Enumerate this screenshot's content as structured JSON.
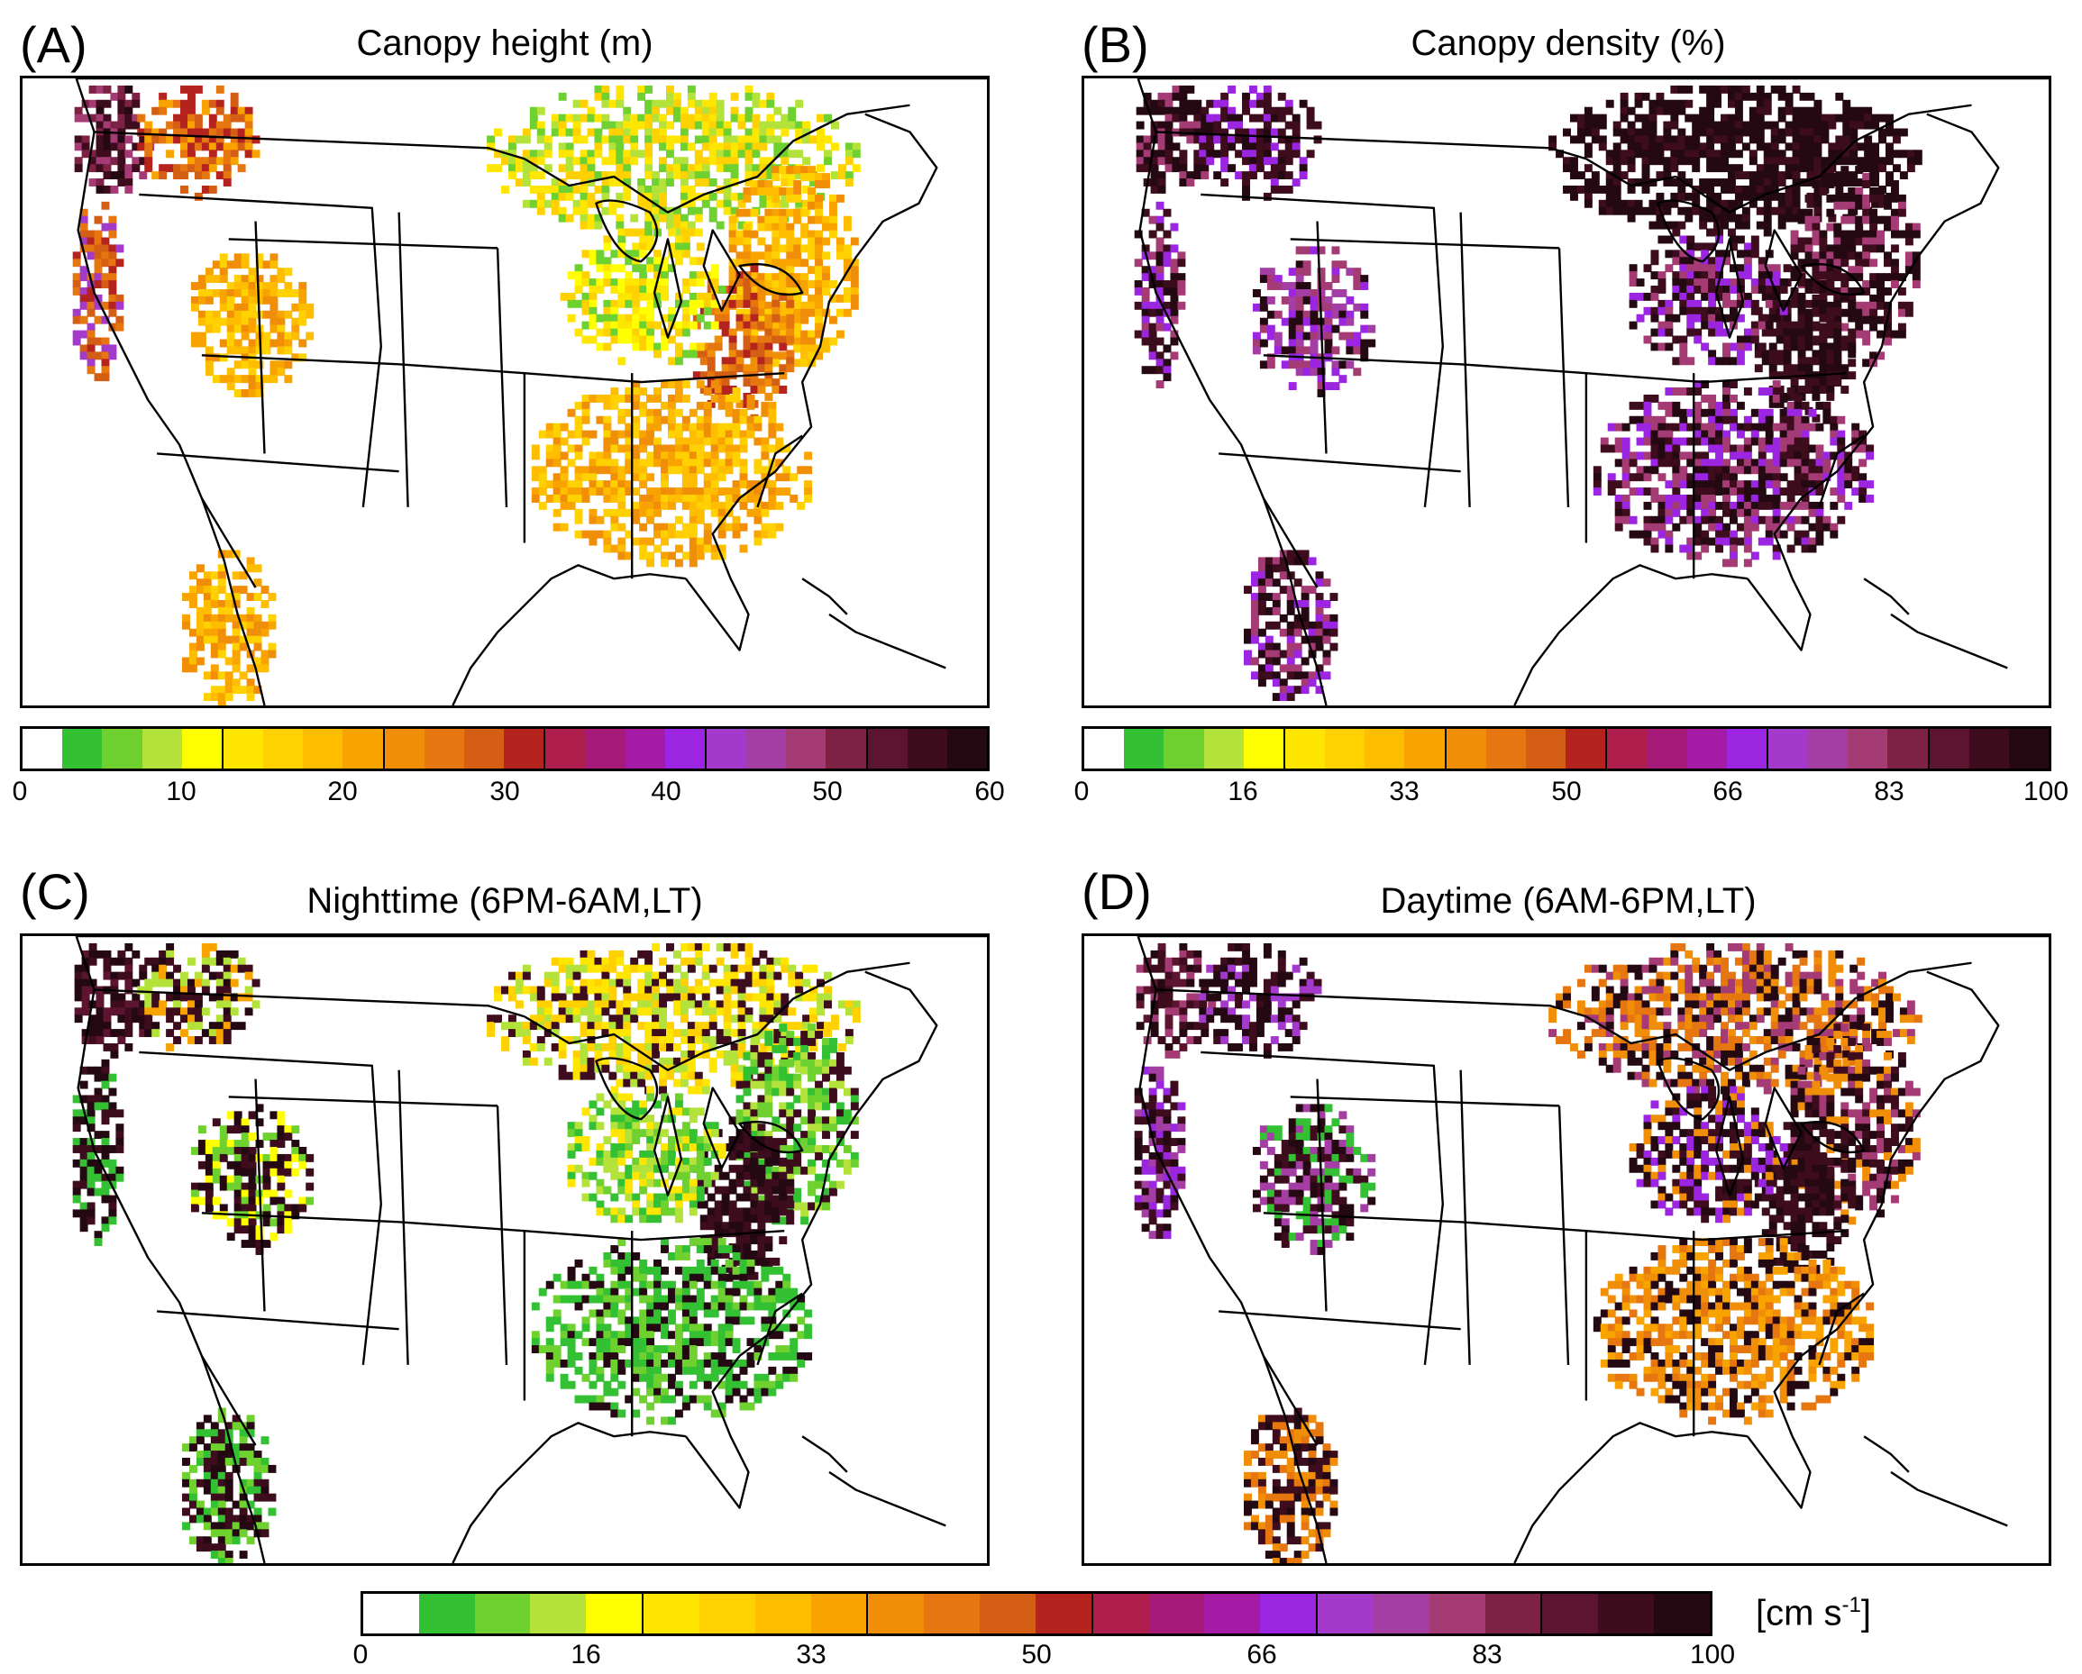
{
  "panels": [
    {
      "label": "(A)",
      "title": "Canopy height (m)",
      "palette": "height"
    },
    {
      "label": "(B)",
      "title": "Canopy density (%)",
      "palette": "density"
    },
    {
      "label": "(C)",
      "title": "Nighttime (6PM-6AM,LT)",
      "palette": "night"
    },
    {
      "label": "(D)",
      "title": "Daytime (6AM-6PM,LT)",
      "palette": "day"
    }
  ],
  "colorbars": {
    "height": {
      "ticks": [
        "0",
        "10",
        "20",
        "30",
        "40",
        "50",
        "60"
      ]
    },
    "density": {
      "ticks": [
        "0",
        "16",
        "33",
        "50",
        "66",
        "83",
        "100"
      ]
    },
    "velocity": {
      "ticks": [
        "0",
        "16",
        "33",
        "50",
        "66",
        "83",
        "100"
      ],
      "units_main": "[cm s",
      "units_sup": "-1",
      "units_end": "]"
    }
  },
  "palette_colors": [
    "#ffffff",
    "#33c133",
    "#6fd12f",
    "#b3e23b",
    "#ffff00",
    "#ffe600",
    "#ffd100",
    "#ffbd00",
    "#f9a300",
    "#f08e08",
    "#e6760f",
    "#d45f14",
    "#b5231e",
    "#b01e4e",
    "#a61b7a",
    "#a51ba5",
    "#9b25e0",
    "#a33acb",
    "#a43ea4",
    "#a43b74",
    "#7d2145",
    "#5c1430",
    "#3d0c1d",
    "#240812"
  ]
}
